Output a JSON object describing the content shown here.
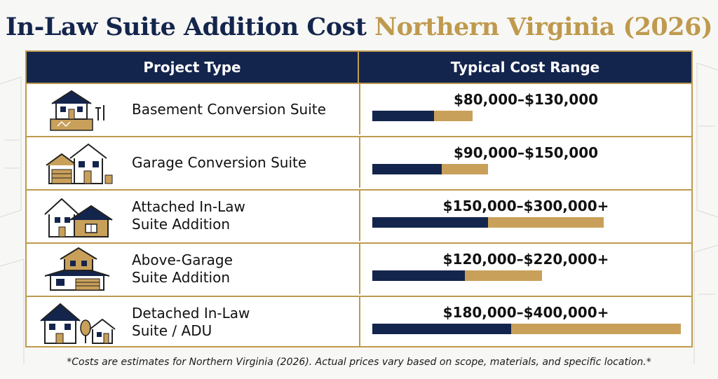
{
  "title": {
    "part1": "In-Law Suite Addition Cost",
    "part2": "Northern Virginia (2026)"
  },
  "table": {
    "header_project": "Project Type",
    "header_cost": "Typical Cost Range"
  },
  "chart_data": {
    "type": "bar",
    "title": "In-Law Suite Addition Cost Northern Virginia (2026)",
    "categories": [
      "Basement Conversion Suite",
      "Garage Conversion Suite",
      "Attached In-Law Suite Addition",
      "Above-Garage Suite Addition",
      "Detached In-Law Suite / ADU"
    ],
    "scale_max": 400000,
    "rows": [
      {
        "label_lines": [
          "Basement Conversion Suite"
        ],
        "icon": "basement-house-icon",
        "cost_label": "$80,000–$130,000",
        "low": 80000,
        "high": 130000
      },
      {
        "label_lines": [
          "Garage Conversion Suite"
        ],
        "icon": "garage-house-icon",
        "cost_label": "$90,000–$150,000",
        "low": 90000,
        "high": 150000
      },
      {
        "label_lines": [
          "Attached In-Law",
          "Suite Addition"
        ],
        "icon": "attached-house-icon",
        "cost_label": "$150,000–$300,000+",
        "low": 150000,
        "high": 300000
      },
      {
        "label_lines": [
          "Above-Garage",
          "Suite Addition"
        ],
        "icon": "above-garage-house-icon",
        "cost_label": "$120,000–$220,000+",
        "low": 120000,
        "high": 220000
      },
      {
        "label_lines": [
          "Detached In-Law",
          "Suite / ADU"
        ],
        "icon": "detached-adu-icon",
        "cost_label": "$180,000–$400,000+",
        "low": 180000,
        "high": 400000
      }
    ],
    "colors": {
      "low": "#14254d",
      "high": "#c9a05a"
    }
  },
  "footnote": "*Costs are estimates for Northern Virginia (2026). Actual prices vary based on scope, materials, and specific location.*"
}
